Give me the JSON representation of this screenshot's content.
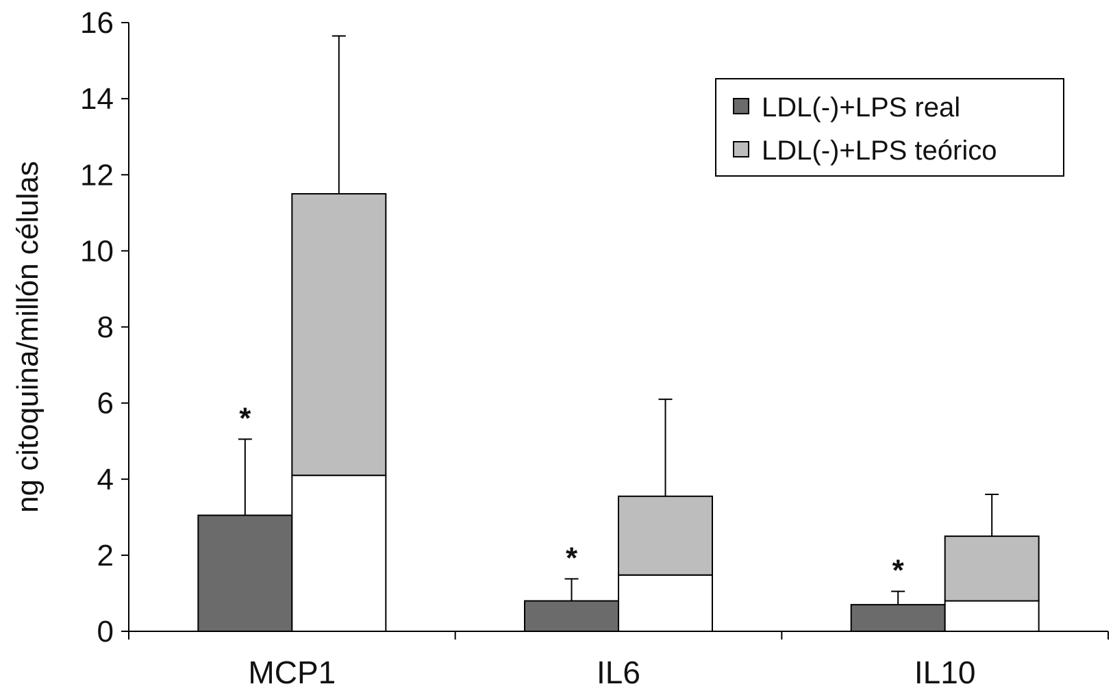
{
  "chart_data": {
    "type": "bar",
    "ylabel": "ng citoquina/millón células",
    "ylim": [
      0,
      16
    ],
    "yticks": [
      "0",
      "2",
      "4",
      "6",
      "8",
      "10",
      "12",
      "14",
      "16"
    ],
    "categories": [
      "MCP1",
      "IL6",
      "IL10"
    ],
    "legend_position": "top-right",
    "legend": [
      {
        "label": "LDL(-)+LPS real",
        "color": "#6b6b6b"
      },
      {
        "label": "LDL(-)+LPS teórico",
        "color": "#bdbdbd"
      }
    ],
    "series": [
      {
        "name": "LDL(-)+LPS real",
        "values": [
          3.05,
          0.8,
          0.7
        ],
        "error": [
          2.0,
          0.58,
          0.35
        ],
        "significance": [
          "*",
          "*",
          "*"
        ],
        "color": "#6b6b6b"
      },
      {
        "name": "LDL(-)+LPS teórico",
        "stack_lower": [
          4.1,
          1.48,
          0.8
        ],
        "values": [
          11.5,
          3.55,
          2.5
        ],
        "error": [
          4.15,
          2.55,
          1.1
        ],
        "color": "#bdbdbd",
        "lower_color": "#ffffff"
      }
    ],
    "colors": {
      "axis": "#000000",
      "bar_outline": "#000000"
    }
  }
}
